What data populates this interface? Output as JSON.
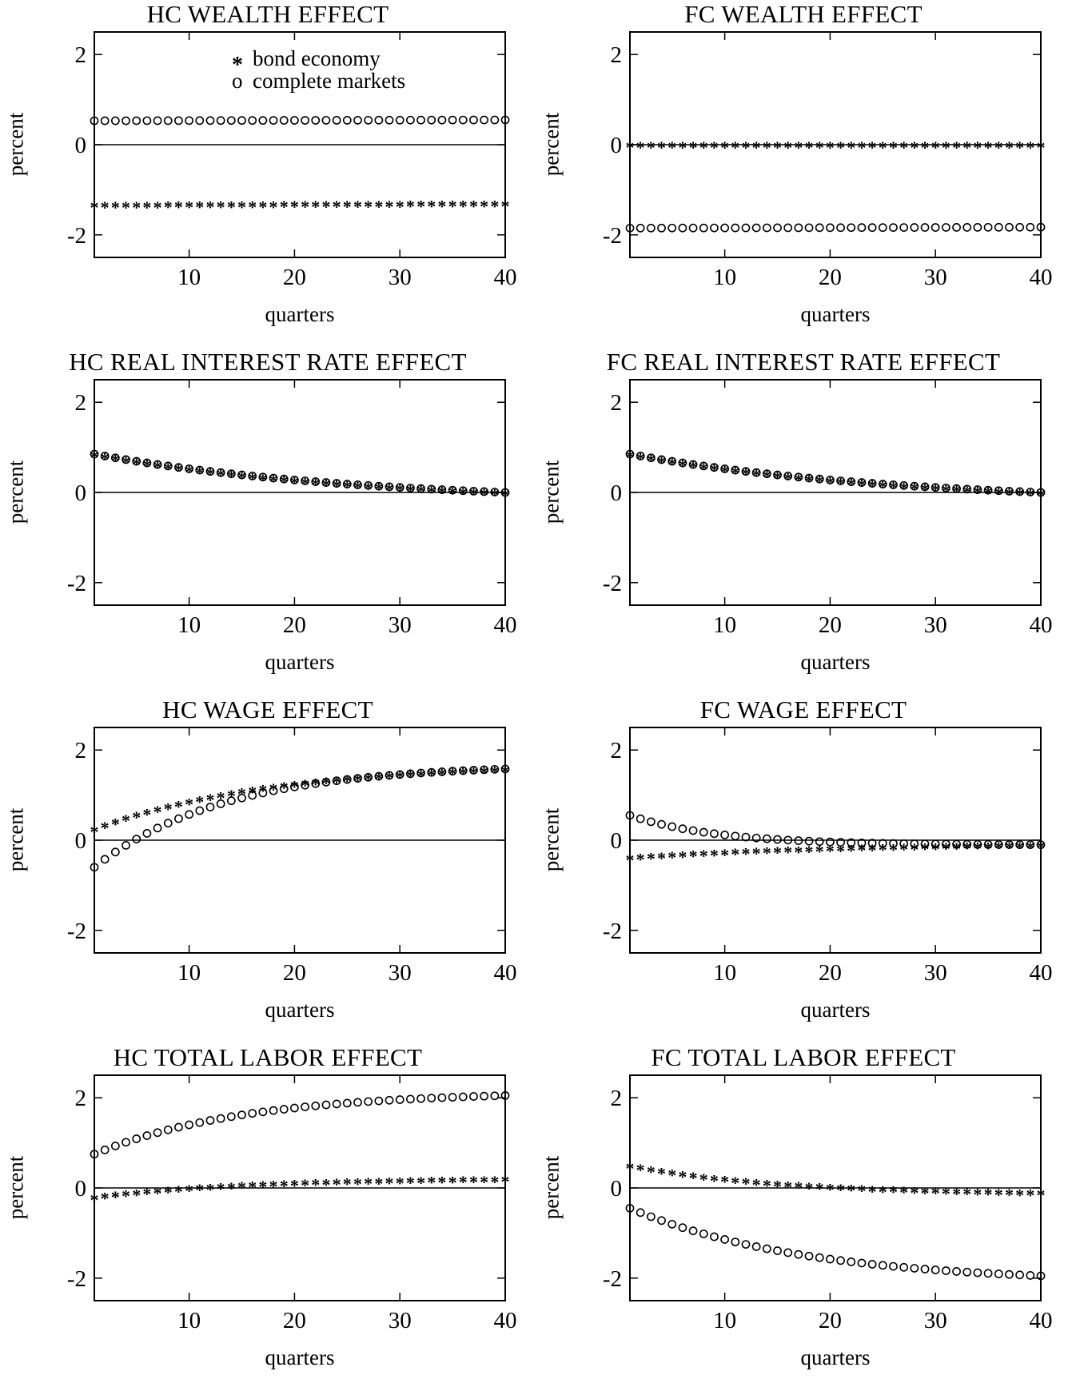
{
  "figure": {
    "ylabel": "percent",
    "xlabel": "quarters"
  },
  "legend": {
    "bond_marker": "*",
    "bond_label": "bond economy",
    "complete_marker": "o",
    "complete_label": "complete markets"
  },
  "chart_data": [
    {
      "type": "scatter",
      "title": "HC WEALTH EFFECT",
      "xlabel": "quarters",
      "ylabel": "percent",
      "xlim": [
        1,
        40
      ],
      "ylim": [
        -2.5,
        2.5
      ],
      "xticks": [
        10,
        20,
        30,
        40
      ],
      "yticks": [
        2,
        0,
        -2
      ],
      "zero_line": true,
      "legend": "top-right",
      "series": [
        {
          "name": "bond economy",
          "marker": "*",
          "start": -1.33,
          "end": -1.3
        },
        {
          "name": "complete markets",
          "marker": "o",
          "start": 0.53,
          "end": 0.55
        }
      ]
    },
    {
      "type": "scatter",
      "title": "FC WEALTH EFFECT",
      "xlabel": "quarters",
      "ylabel": "percent",
      "xlim": [
        1,
        40
      ],
      "ylim": [
        -2.5,
        2.5
      ],
      "xticks": [
        10,
        20,
        30,
        40
      ],
      "yticks": [
        2,
        0,
        -2
      ],
      "zero_line": true,
      "series": [
        {
          "name": "bond economy",
          "marker": "*",
          "start": 0.0,
          "end": 0.0
        },
        {
          "name": "complete markets",
          "marker": "o",
          "start": -1.85,
          "end": -1.83
        }
      ]
    },
    {
      "type": "scatter",
      "title": "HC REAL INTEREST RATE EFFECT",
      "xlabel": "quarters",
      "ylabel": "percent",
      "xlim": [
        1,
        40
      ],
      "ylim": [
        -2.5,
        2.5
      ],
      "xticks": [
        10,
        20,
        30,
        40
      ],
      "yticks": [
        2,
        0,
        -2
      ],
      "zero_line": true,
      "series": [
        {
          "name": "bond economy",
          "marker": "*",
          "start": 0.85,
          "end": 0.0,
          "rate": 0.04
        },
        {
          "name": "complete markets",
          "marker": "o",
          "start": 0.85,
          "end": 0.0,
          "rate": 0.04
        }
      ]
    },
    {
      "type": "scatter",
      "title": "FC REAL INTEREST RATE EFFECT",
      "xlabel": "quarters",
      "ylabel": "percent",
      "xlim": [
        1,
        40
      ],
      "ylim": [
        -2.5,
        2.5
      ],
      "xticks": [
        10,
        20,
        30,
        40
      ],
      "yticks": [
        2,
        0,
        -2
      ],
      "zero_line": true,
      "series": [
        {
          "name": "bond economy",
          "marker": "*",
          "start": 0.85,
          "end": 0.0,
          "rate": 0.04
        },
        {
          "name": "complete markets",
          "marker": "o",
          "start": 0.85,
          "end": 0.0,
          "rate": 0.04
        }
      ]
    },
    {
      "type": "scatter",
      "title": "HC WAGE EFFECT",
      "xlabel": "quarters",
      "ylabel": "percent",
      "xlim": [
        1,
        40
      ],
      "ylim": [
        -2.5,
        2.5
      ],
      "xticks": [
        10,
        20,
        30,
        40
      ],
      "yticks": [
        2,
        0,
        -2
      ],
      "zero_line": true,
      "series": [
        {
          "name": "bond economy",
          "marker": "*",
          "start": 0.25,
          "end": 1.58,
          "rate": 0.06
        },
        {
          "name": "complete markets",
          "marker": "o",
          "start": -0.6,
          "end": 1.58,
          "rate": 0.08
        }
      ]
    },
    {
      "type": "scatter",
      "title": "FC WAGE EFFECT",
      "xlabel": "quarters",
      "ylabel": "percent",
      "xlim": [
        1,
        40
      ],
      "ylim": [
        -2.5,
        2.5
      ],
      "xticks": [
        10,
        20,
        30,
        40
      ],
      "yticks": [
        2,
        0,
        -2
      ],
      "zero_line": true,
      "series": [
        {
          "name": "bond economy",
          "marker": "*",
          "start": -0.38,
          "end": -0.1,
          "rate": 0.05
        },
        {
          "name": "complete markets",
          "marker": "o",
          "start": 0.55,
          "end": -0.1,
          "rate": 0.12
        }
      ]
    },
    {
      "type": "scatter",
      "title": "HC TOTAL LABOR EFFECT",
      "xlabel": "quarters",
      "ylabel": "percent",
      "xlim": [
        1,
        40
      ],
      "ylim": [
        -2.5,
        2.5
      ],
      "xticks": [
        10,
        20,
        30,
        40
      ],
      "yticks": [
        2,
        0,
        -2
      ],
      "zero_line": true,
      "series": [
        {
          "name": "bond economy",
          "marker": "*",
          "start": -0.2,
          "end": 0.2,
          "rate": 0.07
        },
        {
          "name": "complete markets",
          "marker": "o",
          "start": 0.75,
          "end": 2.05,
          "rate": 0.07
        }
      ]
    },
    {
      "type": "scatter",
      "title": "FC TOTAL LABOR EFFECT",
      "xlabel": "quarters",
      "ylabel": "percent",
      "xlim": [
        1,
        40
      ],
      "ylim": [
        -2.5,
        2.5
      ],
      "xticks": [
        10,
        20,
        30,
        40
      ],
      "yticks": [
        2,
        0,
        -2
      ],
      "zero_line": true,
      "series": [
        {
          "name": "bond economy",
          "marker": "*",
          "start": 0.5,
          "end": -0.1,
          "rate": 0.07
        },
        {
          "name": "complete markets",
          "marker": "o",
          "start": -0.45,
          "end": -1.95,
          "rate": 0.06
        }
      ]
    }
  ]
}
